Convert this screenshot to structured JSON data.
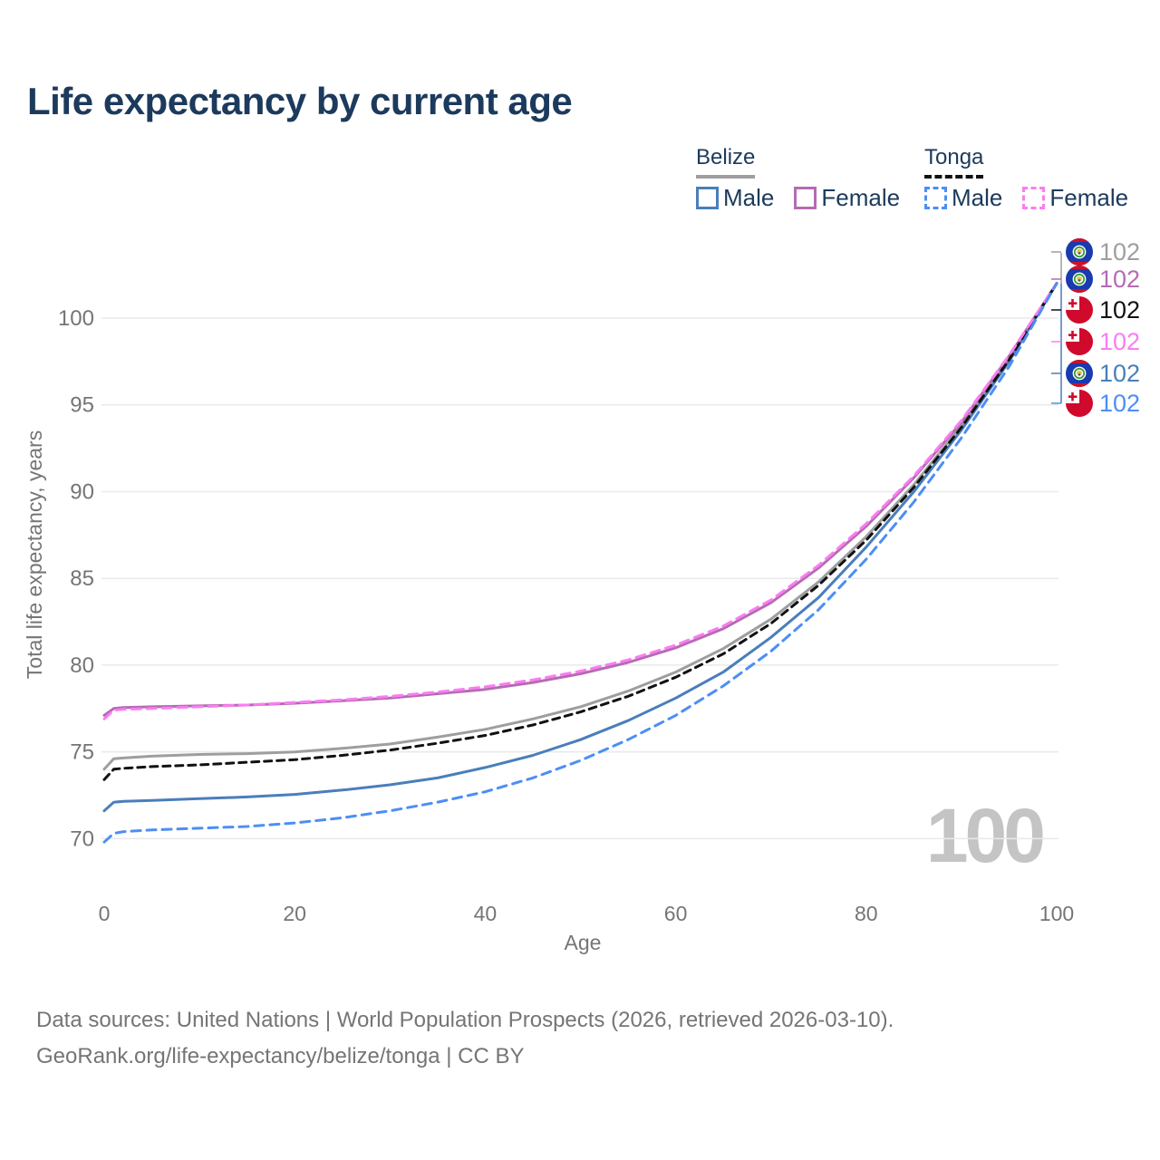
{
  "title": "Life expectancy by current age",
  "watermark": {
    "text": "100"
  },
  "legend": {
    "groups": [
      {
        "label": "Belize",
        "line_style": "solid",
        "underline_color": "#9e9e9e",
        "items": [
          {
            "label": "Male",
            "color": "#4a7ebb",
            "dashed": false
          },
          {
            "label": "Female",
            "color": "#b56bb3",
            "dashed": false
          }
        ]
      },
      {
        "label": "Tonga",
        "line_style": "dashed",
        "underline_color": "#111111",
        "items": [
          {
            "label": "Male",
            "color": "#4d8ef5",
            "dashed": true
          },
          {
            "label": "Female",
            "color": "#fb7df2",
            "dashed": true
          }
        ]
      }
    ]
  },
  "chart_data": {
    "type": "line",
    "title": "Life expectancy by current age",
    "xlabel": "Age",
    "ylabel": "Total life expectancy, years",
    "x_ticks": [
      0,
      20,
      40,
      60,
      80,
      100
    ],
    "y_ticks": [
      70,
      75,
      80,
      85,
      90,
      95,
      100
    ],
    "xlim": [
      0,
      100
    ],
    "ylim": [
      68.5,
      102.5
    ],
    "grid": "horizontal",
    "legend_position": "top-right",
    "ages": [
      0,
      1,
      2,
      5,
      10,
      15,
      20,
      25,
      30,
      35,
      40,
      45,
      50,
      55,
      60,
      65,
      70,
      75,
      80,
      85,
      90,
      95,
      100
    ],
    "series": [
      {
        "id": "belize-both",
        "name": "Belize (both sexes)",
        "country": "Belize",
        "sex": "Both",
        "color": "#9e9e9e",
        "dash": null,
        "values": [
          74.0,
          74.6,
          74.65,
          74.75,
          74.85,
          74.9,
          75.0,
          75.2,
          75.45,
          75.85,
          76.3,
          76.9,
          77.6,
          78.5,
          79.6,
          80.95,
          82.65,
          84.8,
          87.4,
          90.4,
          93.8,
          97.65,
          102
        ]
      },
      {
        "id": "belize-female",
        "name": "Belize Female",
        "country": "Belize",
        "sex": "Female",
        "color": "#b56bb3",
        "dash": null,
        "values": [
          77.1,
          77.5,
          77.55,
          77.6,
          77.65,
          77.7,
          77.8,
          77.95,
          78.1,
          78.35,
          78.6,
          79.0,
          79.5,
          80.15,
          81.0,
          82.1,
          83.6,
          85.6,
          88.0,
          90.8,
          94.0,
          97.8,
          102
        ]
      },
      {
        "id": "belize-male",
        "name": "Belize Male",
        "country": "Belize",
        "sex": "Male",
        "color": "#4a7ebb",
        "dash": null,
        "values": [
          71.6,
          72.1,
          72.15,
          72.2,
          72.3,
          72.4,
          72.55,
          72.8,
          73.1,
          73.5,
          74.1,
          74.8,
          75.7,
          76.8,
          78.1,
          79.6,
          81.6,
          83.9,
          86.8,
          90.0,
          93.55,
          97.5,
          102
        ]
      },
      {
        "id": "tonga-both",
        "name": "Tonga (both sexes)",
        "country": "Tonga",
        "sex": "Both",
        "color": "#111111",
        "dash": "8 6",
        "values": [
          73.4,
          74.0,
          74.05,
          74.15,
          74.25,
          74.4,
          74.55,
          74.8,
          75.1,
          75.5,
          75.95,
          76.55,
          77.3,
          78.2,
          79.3,
          80.65,
          82.4,
          84.6,
          87.2,
          90.25,
          93.7,
          97.6,
          102
        ]
      },
      {
        "id": "tonga-female",
        "name": "Tonga Female",
        "country": "Tonga",
        "sex": "Female",
        "color": "#fb7df2",
        "dash": "10 7",
        "values": [
          76.9,
          77.4,
          77.45,
          77.5,
          77.6,
          77.7,
          77.85,
          78.0,
          78.2,
          78.45,
          78.75,
          79.15,
          79.65,
          80.3,
          81.15,
          82.25,
          83.75,
          85.75,
          88.15,
          90.9,
          94.1,
          97.85,
          102
        ]
      },
      {
        "id": "tonga-male",
        "name": "Tonga Male",
        "country": "Tonga",
        "sex": "Male",
        "color": "#4d8ef5",
        "dash": "10 7",
        "values": [
          69.8,
          70.3,
          70.4,
          70.5,
          70.6,
          70.7,
          70.9,
          71.2,
          71.6,
          72.1,
          72.7,
          73.5,
          74.5,
          75.7,
          77.1,
          78.8,
          80.8,
          83.2,
          86.1,
          89.4,
          93.1,
          97.2,
          102
        ]
      }
    ],
    "end_labels": [
      {
        "series": "belize-both",
        "flag": "belize",
        "value": "102",
        "color": "#9e9e9e"
      },
      {
        "series": "belize-female",
        "flag": "belize",
        "value": "102",
        "color": "#b56bb3"
      },
      {
        "series": "tonga-both",
        "flag": "tonga",
        "value": "102",
        "color": "#111111"
      },
      {
        "series": "tonga-female",
        "flag": "tonga",
        "value": "102",
        "color": "#fb7df2"
      },
      {
        "series": "belize-male",
        "flag": "belize",
        "value": "102",
        "color": "#4a7ebb"
      },
      {
        "series": "tonga-male",
        "flag": "tonga",
        "value": "102",
        "color": "#4d8ef5"
      }
    ]
  },
  "footer": {
    "line1": "Data sources: United Nations | World Population Prospects (2026, retrieved 2026-03-10).",
    "line2": "GeoRank.org/life-expectancy/belize/tonga | CC BY"
  }
}
